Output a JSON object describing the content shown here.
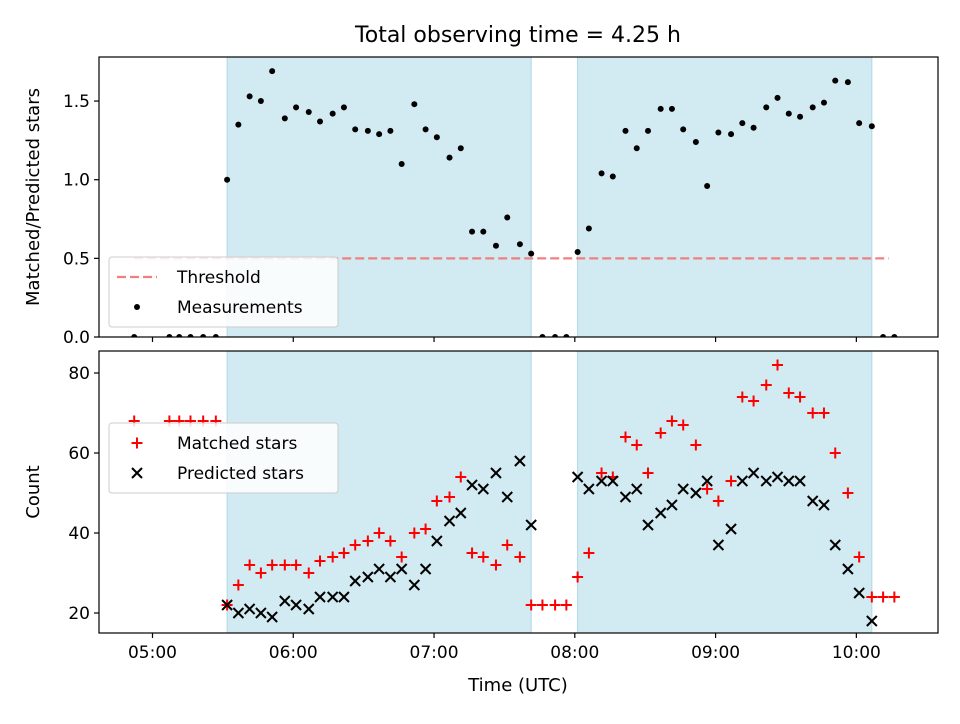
{
  "chart_data": {
    "type": "scatter",
    "title": "Total observing time = 4.25 h",
    "xlabel": "Time (UTC)",
    "x_unit": "hours UTC",
    "xlim": [
      4.62,
      10.58
    ],
    "x_ticks": [
      5,
      6,
      7,
      8,
      9,
      10
    ],
    "x_tick_labels": [
      "05:00",
      "06:00",
      "07:00",
      "08:00",
      "09:00",
      "10:00"
    ],
    "shaded_intervals": [
      [
        5.53,
        7.69
      ],
      [
        8.02,
        10.11
      ]
    ],
    "shade_color": "#add8e6",
    "panels": [
      {
        "ylabel": "Matched/Predicted stars",
        "ylim": [
          0,
          1.78
        ],
        "y_ticks": [
          0.0,
          0.5,
          1.0,
          1.5
        ],
        "y_tick_labels": [
          "0.0",
          "0.5",
          "1.0",
          "1.5"
        ],
        "legend_position": "lower-left",
        "threshold": {
          "name": "Threshold",
          "y": 0.5,
          "x_range": [
            4.87,
            10.23
          ],
          "color": "#f08080",
          "style": "dashed"
        },
        "series": [
          {
            "name": "Measurements",
            "marker": "dot",
            "color": "#000000",
            "points": [
              [
                4.87,
                0.0
              ],
              [
                5.12,
                0.0
              ],
              [
                5.19,
                0.0
              ],
              [
                5.27,
                0.0
              ],
              [
                5.36,
                0.0
              ],
              [
                5.45,
                0.0
              ],
              [
                5.53,
                1.0
              ],
              [
                5.61,
                1.35
              ],
              [
                5.69,
                1.53
              ],
              [
                5.77,
                1.5
              ],
              [
                5.85,
                1.69
              ],
              [
                5.94,
                1.39
              ],
              [
                6.02,
                1.46
              ],
              [
                6.11,
                1.43
              ],
              [
                6.19,
                1.37
              ],
              [
                6.28,
                1.42
              ],
              [
                6.36,
                1.46
              ],
              [
                6.44,
                1.32
              ],
              [
                6.53,
                1.31
              ],
              [
                6.61,
                1.29
              ],
              [
                6.69,
                1.31
              ],
              [
                6.77,
                1.1
              ],
              [
                6.86,
                1.48
              ],
              [
                6.94,
                1.32
              ],
              [
                7.02,
                1.27
              ],
              [
                7.11,
                1.14
              ],
              [
                7.19,
                1.2
              ],
              [
                7.27,
                0.67
              ],
              [
                7.35,
                0.67
              ],
              [
                7.44,
                0.58
              ],
              [
                7.52,
                0.76
              ],
              [
                7.61,
                0.59
              ],
              [
                7.69,
                0.53
              ],
              [
                7.77,
                0.0
              ],
              [
                7.86,
                0.0
              ],
              [
                7.94,
                0.0
              ],
              [
                8.02,
                0.54
              ],
              [
                8.1,
                0.69
              ],
              [
                8.19,
                1.04
              ],
              [
                8.27,
                1.02
              ],
              [
                8.36,
                1.31
              ],
              [
                8.44,
                1.2
              ],
              [
                8.52,
                1.31
              ],
              [
                8.61,
                1.45
              ],
              [
                8.69,
                1.45
              ],
              [
                8.77,
                1.32
              ],
              [
                8.86,
                1.24
              ],
              [
                8.94,
                0.96
              ],
              [
                9.02,
                1.3
              ],
              [
                9.11,
                1.29
              ],
              [
                9.19,
                1.36
              ],
              [
                9.27,
                1.33
              ],
              [
                9.36,
                1.46
              ],
              [
                9.44,
                1.52
              ],
              [
                9.52,
                1.42
              ],
              [
                9.6,
                1.4
              ],
              [
                9.69,
                1.46
              ],
              [
                9.77,
                1.49
              ],
              [
                9.85,
                1.63
              ],
              [
                9.94,
                1.62
              ],
              [
                10.02,
                1.36
              ],
              [
                10.11,
                1.34
              ],
              [
                10.19,
                0.0
              ],
              [
                10.27,
                0.0
              ]
            ]
          }
        ]
      },
      {
        "ylabel": "Count",
        "ylim": [
          15,
          85.5
        ],
        "y_ticks": [
          20,
          40,
          60,
          80
        ],
        "y_tick_labels": [
          "20",
          "40",
          "60",
          "80"
        ],
        "legend_position": "center-left",
        "series": [
          {
            "name": "Matched stars",
            "marker": "plus",
            "color": "#ff0000",
            "points": [
              [
                4.87,
                68
              ],
              [
                5.12,
                68
              ],
              [
                5.19,
                68
              ],
              [
                5.27,
                68
              ],
              [
                5.36,
                68
              ],
              [
                5.45,
                68
              ],
              [
                5.53,
                22
              ],
              [
                5.61,
                27
              ],
              [
                5.69,
                32
              ],
              [
                5.77,
                30
              ],
              [
                5.85,
                32
              ],
              [
                5.94,
                32
              ],
              [
                6.02,
                32
              ],
              [
                6.11,
                30
              ],
              [
                6.19,
                33
              ],
              [
                6.28,
                34
              ],
              [
                6.36,
                35
              ],
              [
                6.44,
                37
              ],
              [
                6.53,
                38
              ],
              [
                6.61,
                40
              ],
              [
                6.69,
                38
              ],
              [
                6.77,
                34
              ],
              [
                6.86,
                40
              ],
              [
                6.94,
                41
              ],
              [
                7.02,
                48
              ],
              [
                7.11,
                49
              ],
              [
                7.19,
                54
              ],
              [
                7.27,
                35
              ],
              [
                7.35,
                34
              ],
              [
                7.44,
                32
              ],
              [
                7.52,
                37
              ],
              [
                7.61,
                34
              ],
              [
                7.69,
                22
              ],
              [
                7.77,
                22
              ],
              [
                7.86,
                22
              ],
              [
                7.94,
                22
              ],
              [
                8.02,
                29
              ],
              [
                8.1,
                35
              ],
              [
                8.19,
                55
              ],
              [
                8.27,
                54
              ],
              [
                8.36,
                64
              ],
              [
                8.44,
                62
              ],
              [
                8.52,
                55
              ],
              [
                8.61,
                65
              ],
              [
                8.69,
                68
              ],
              [
                8.77,
                67
              ],
              [
                8.86,
                62
              ],
              [
                8.94,
                51
              ],
              [
                9.02,
                48
              ],
              [
                9.11,
                53
              ],
              [
                9.19,
                74
              ],
              [
                9.27,
                73
              ],
              [
                9.36,
                77
              ],
              [
                9.44,
                82
              ],
              [
                9.52,
                75
              ],
              [
                9.6,
                74
              ],
              [
                9.69,
                70
              ],
              [
                9.77,
                70
              ],
              [
                9.85,
                60
              ],
              [
                9.94,
                50
              ],
              [
                10.02,
                34
              ],
              [
                10.11,
                24
              ],
              [
                10.19,
                24
              ],
              [
                10.27,
                24
              ]
            ]
          },
          {
            "name": "Predicted stars",
            "marker": "x",
            "color": "#000000",
            "points": [
              [
                5.53,
                22
              ],
              [
                5.61,
                20
              ],
              [
                5.69,
                21
              ],
              [
                5.77,
                20
              ],
              [
                5.85,
                19
              ],
              [
                5.94,
                23
              ],
              [
                6.02,
                22
              ],
              [
                6.11,
                21
              ],
              [
                6.19,
                24
              ],
              [
                6.28,
                24
              ],
              [
                6.36,
                24
              ],
              [
                6.44,
                28
              ],
              [
                6.53,
                29
              ],
              [
                6.61,
                31
              ],
              [
                6.69,
                29
              ],
              [
                6.77,
                31
              ],
              [
                6.86,
                27
              ],
              [
                6.94,
                31
              ],
              [
                7.02,
                38
              ],
              [
                7.11,
                43
              ],
              [
                7.19,
                45
              ],
              [
                7.27,
                52
              ],
              [
                7.35,
                51
              ],
              [
                7.44,
                55
              ],
              [
                7.52,
                49
              ],
              [
                7.61,
                58
              ],
              [
                7.69,
                42
              ],
              [
                8.02,
                54
              ],
              [
                8.1,
                51
              ],
              [
                8.19,
                53
              ],
              [
                8.27,
                53
              ],
              [
                8.36,
                49
              ],
              [
                8.44,
                51
              ],
              [
                8.52,
                42
              ],
              [
                8.61,
                45
              ],
              [
                8.69,
                47
              ],
              [
                8.77,
                51
              ],
              [
                8.86,
                50
              ],
              [
                8.94,
                53
              ],
              [
                9.02,
                37
              ],
              [
                9.11,
                41
              ],
              [
                9.19,
                53
              ],
              [
                9.27,
                55
              ],
              [
                9.36,
                53
              ],
              [
                9.44,
                54
              ],
              [
                9.52,
                53
              ],
              [
                9.6,
                53
              ],
              [
                9.69,
                48
              ],
              [
                9.77,
                47
              ],
              [
                9.85,
                37
              ],
              [
                9.94,
                31
              ],
              [
                10.02,
                25
              ],
              [
                10.11,
                18
              ]
            ]
          }
        ]
      }
    ]
  }
}
